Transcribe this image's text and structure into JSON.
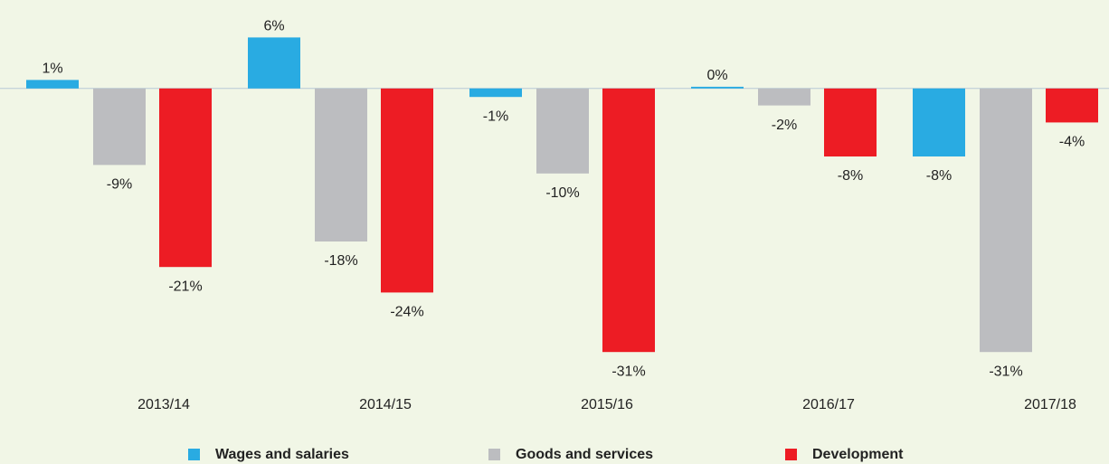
{
  "chart_data": {
    "type": "bar",
    "categories": [
      "2013/14",
      "2014/15",
      "2015/16",
      "2016/17",
      "2017/18"
    ],
    "series": [
      {
        "name": "Wages and salaries",
        "color": "#29abe2",
        "values": [
          1,
          6,
          -1,
          0.2,
          -8
        ],
        "value_labels": [
          "1%",
          "6%",
          "-1%",
          "0%",
          "-8%"
        ]
      },
      {
        "name": "Goods and services",
        "color": "#bcbdc0",
        "values": [
          -9,
          -18,
          -10,
          -2,
          -31
        ],
        "value_labels": [
          "-9%",
          "-18%",
          "-10%",
          "-2%",
          "-31%"
        ]
      },
      {
        "name": "Development",
        "color": "#ed1c24",
        "values": [
          -21,
          -24,
          -31,
          -8,
          -4
        ],
        "value_labels": [
          "-21%",
          "-24%",
          "-31%",
          "-8%",
          "-4%"
        ]
      }
    ],
    "ylim": [
      -32,
      7
    ],
    "legend": "bottom"
  }
}
